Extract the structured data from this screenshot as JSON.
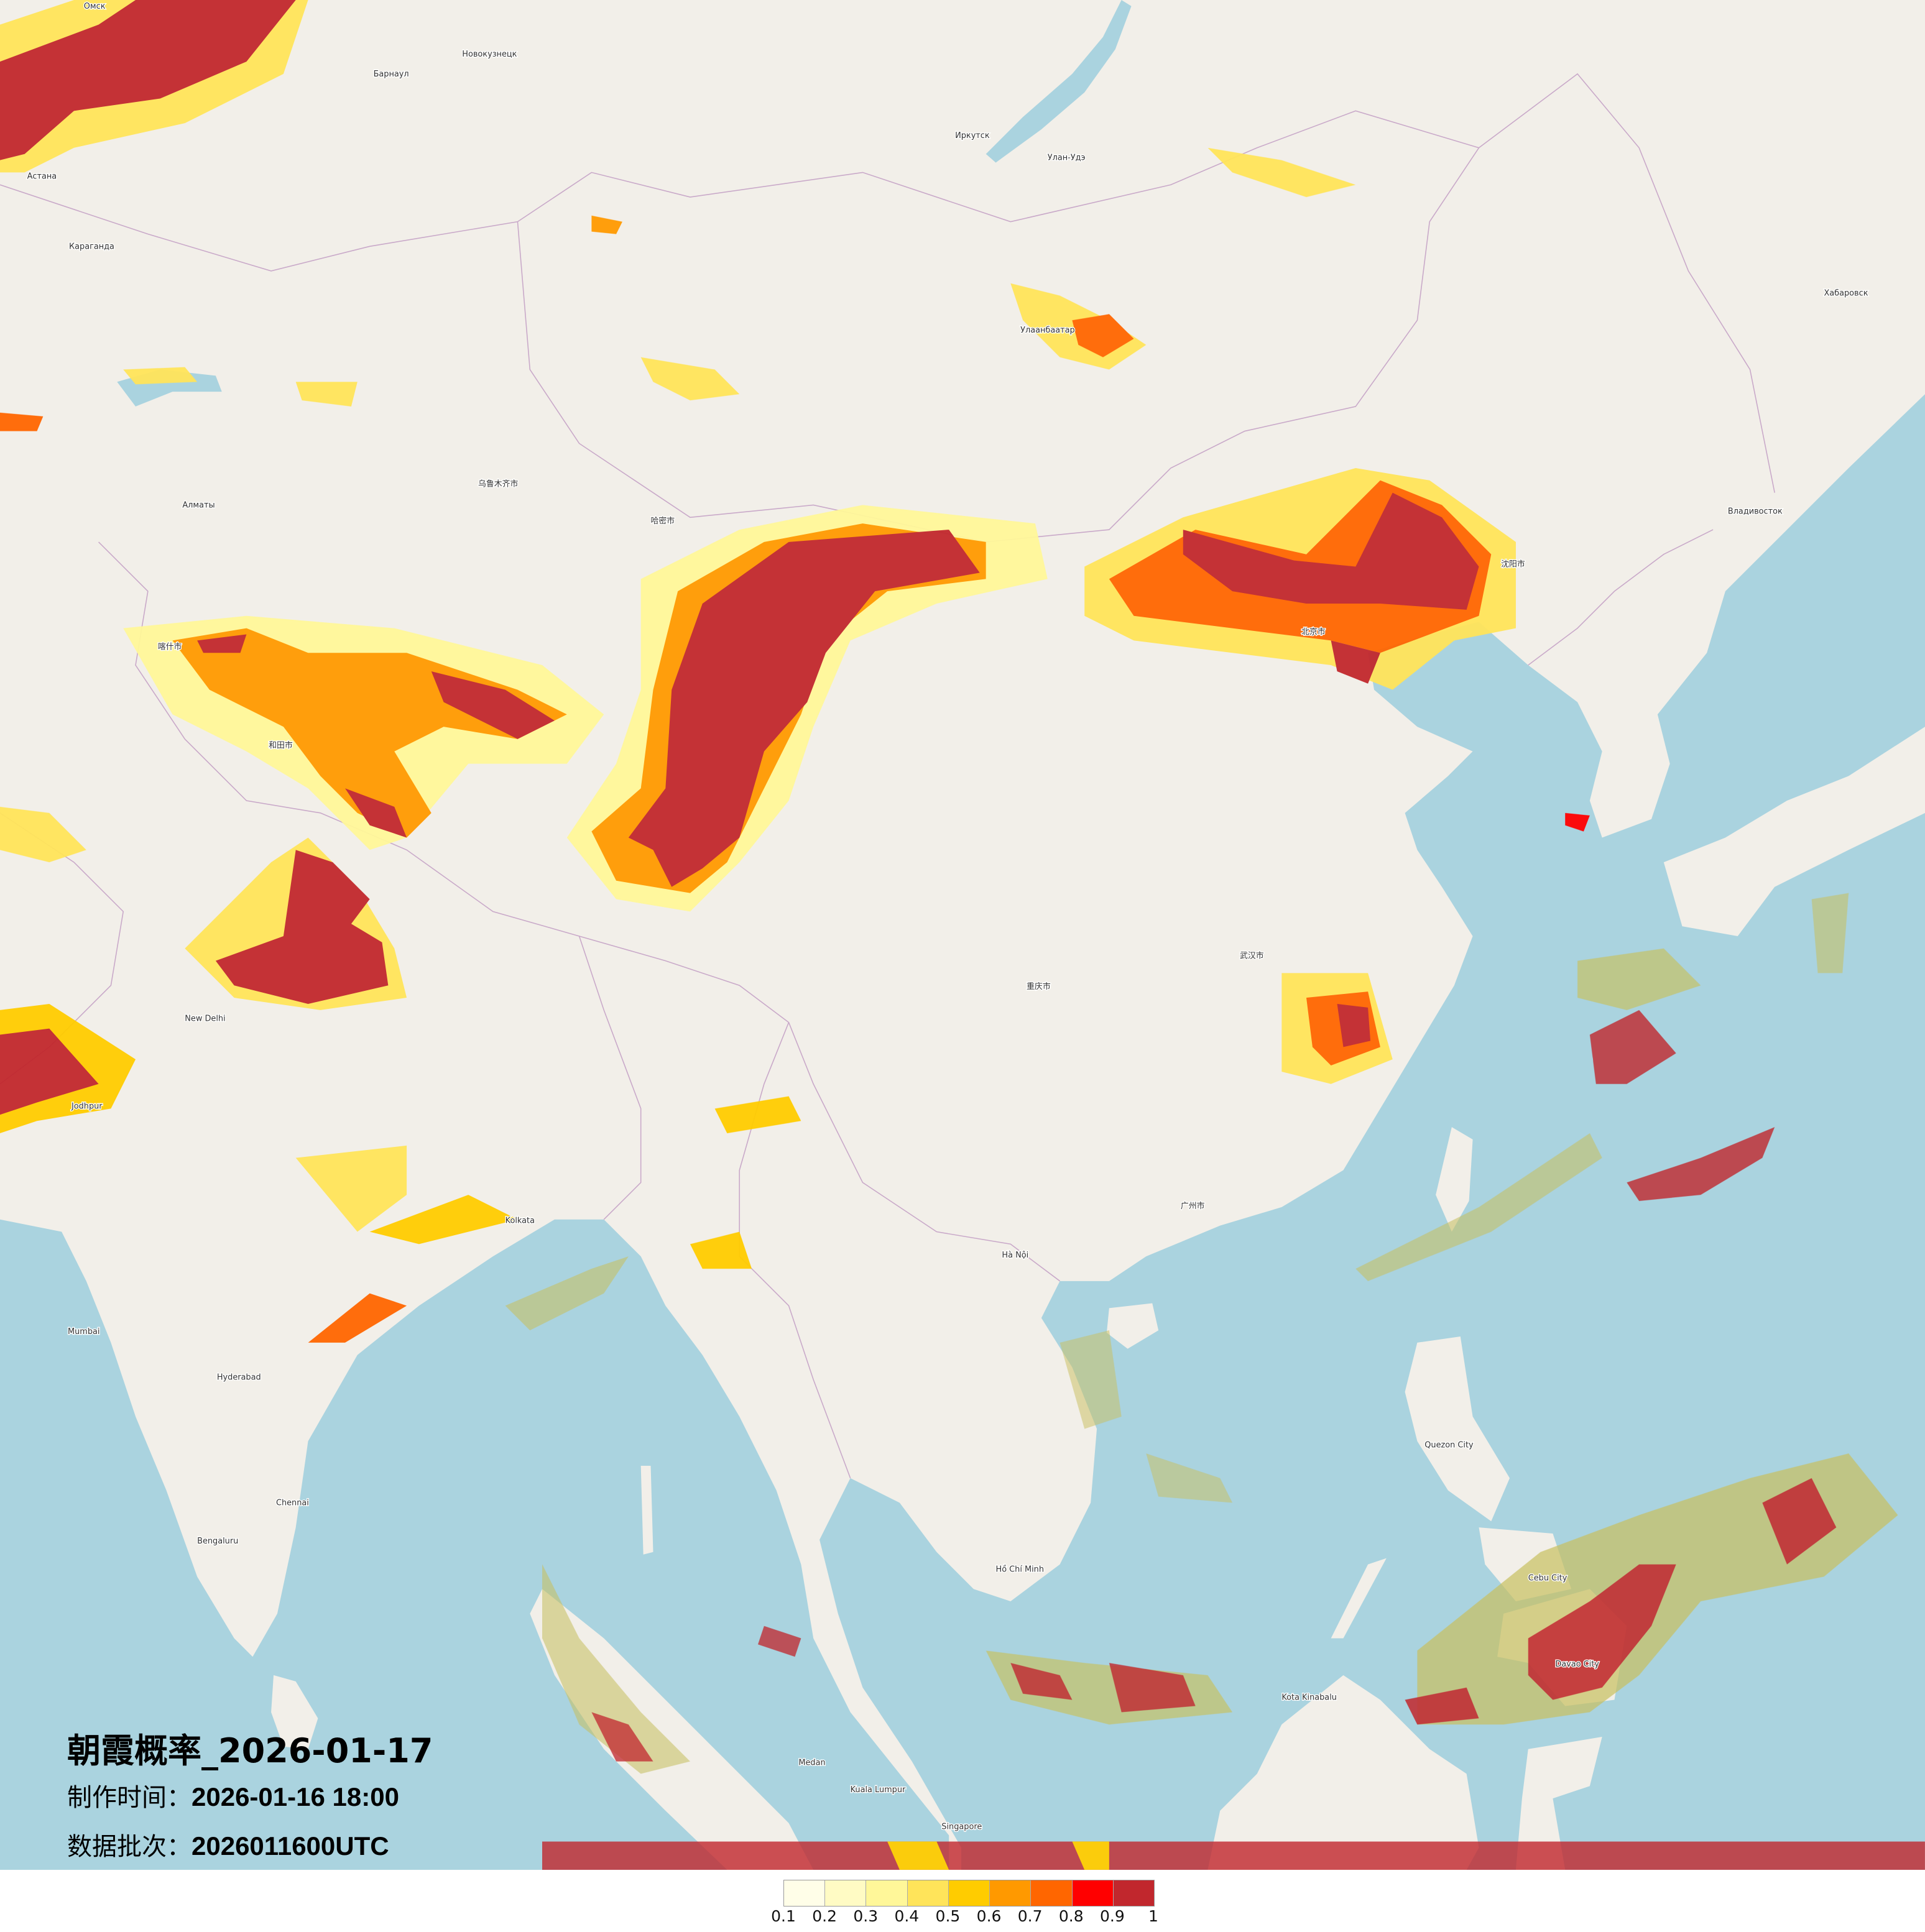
{
  "title": "朝霞概率_2026-01-17",
  "production_time_label": "制作时间：",
  "production_time": "2026-01-16 18:00",
  "data_batch_label": "数据批次：",
  "data_batch": "2026011600UTC",
  "colors": {
    "land": "#f2efe9",
    "sea": "#aad3df",
    "border": "#c9a9c9"
  },
  "legend": {
    "colors": [
      "#fffee8",
      "#fffbc4",
      "#fff799",
      "#ffe45a",
      "#ffcc00",
      "#ff9900",
      "#ff6600",
      "#ff0000",
      "#c1272d"
    ],
    "ticks": [
      "0.1",
      "0.2",
      "0.3",
      "0.4",
      "0.5",
      "0.6",
      "0.7",
      "0.8",
      "0.9",
      "1"
    ]
  },
  "labels": [
    "Омск",
    "Барнаул",
    "Новокузнецк",
    "Астана",
    "Караганда",
    "Иркутск",
    "Улан-Удэ",
    "Улаанбаатар",
    "Алматы",
    "乌鲁木齐市",
    "哈密市",
    "喀什市",
    "和田市",
    "New Delhi",
    "Kolkata",
    "Mumbai",
    "Bengaluru",
    "重庆市",
    "武汉市",
    "北京市",
    "沈阳市",
    "广州市",
    "Hà Nội",
    "Hồ Chí Minh",
    "Kuala Lumpur",
    "Singapore",
    "Quezon City",
    "Cebu City",
    "Davao City",
    "Kota Kinabalu",
    "Medan",
    "Хабаровск",
    "Владивосток",
    "Chennai",
    "Hyderabad",
    "Jodhpur"
  ]
}
